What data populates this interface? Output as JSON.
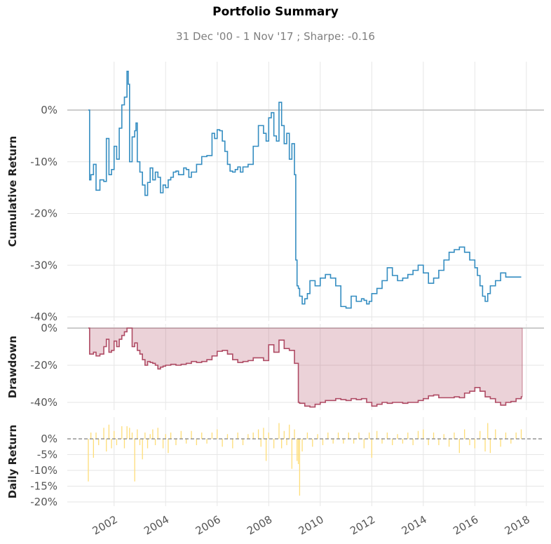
{
  "title": "Portfolio Summary",
  "subtitle": "31 Dec '00 -  1 Nov '17 ;  Sharpe: -0.16",
  "chart_data": [
    {
      "type": "line",
      "ylabel": "Cumulative Return",
      "x_range": [
        2001.0,
        2017.84
      ],
      "ylim": [
        -40,
        8
      ],
      "yticks": [
        0,
        -10,
        -20,
        -30,
        -40
      ],
      "ytick_labels": [
        "0%",
        "-10%",
        "-20%",
        "-30%",
        "-40%"
      ],
      "grid": true,
      "color": "#348dc1",
      "x": [
        2001.0,
        2001.05,
        2001.1,
        2001.2,
        2001.3,
        2001.45,
        2001.6,
        2001.7,
        2001.8,
        2001.9,
        2002.0,
        2002.1,
        2002.2,
        2002.3,
        2002.4,
        2002.5,
        2002.55,
        2002.6,
        2002.7,
        2002.8,
        2002.85,
        2002.9,
        2003.0,
        2003.1,
        2003.2,
        2003.3,
        2003.4,
        2003.5,
        2003.6,
        2003.7,
        2003.8,
        2003.9,
        2004.0,
        2004.1,
        2004.2,
        2004.3,
        2004.4,
        2004.5,
        2004.6,
        2004.7,
        2004.8,
        2004.9,
        2005.0,
        2005.2,
        2005.4,
        2005.6,
        2005.8,
        2005.9,
        2006.0,
        2006.1,
        2006.2,
        2006.3,
        2006.4,
        2006.5,
        2006.6,
        2006.7,
        2006.8,
        2006.9,
        2007.0,
        2007.2,
        2007.4,
        2007.6,
        2007.8,
        2007.9,
        2008.0,
        2008.1,
        2008.2,
        2008.3,
        2008.4,
        2008.5,
        2008.6,
        2008.7,
        2008.8,
        2008.9,
        2009.0,
        2009.05,
        2009.1,
        2009.15,
        2009.2,
        2009.3,
        2009.4,
        2009.5,
        2009.6,
        2009.8,
        2010.0,
        2010.2,
        2010.4,
        2010.6,
        2010.8,
        2011.0,
        2011.2,
        2011.4,
        2011.6,
        2011.7,
        2011.8,
        2011.9,
        2012.0,
        2012.2,
        2012.4,
        2012.6,
        2012.8,
        2013.0,
        2013.2,
        2013.4,
        2013.6,
        2013.8,
        2014.0,
        2014.2,
        2014.4,
        2014.6,
        2014.8,
        2015.0,
        2015.2,
        2015.4,
        2015.6,
        2015.8,
        2016.0,
        2016.1,
        2016.2,
        2016.3,
        2016.4,
        2016.5,
        2016.6,
        2016.8,
        2017.0,
        2017.2,
        2017.4,
        2017.6,
        2017.7,
        2017.8
      ],
      "y": [
        0,
        -13.5,
        -12.5,
        -10.5,
        -15.5,
        -13.5,
        -13.8,
        -5.5,
        -12.5,
        -11.5,
        -7,
        -9.5,
        -3.5,
        1,
        2.5,
        7.5,
        5,
        -10,
        -5.2,
        -4,
        -2.5,
        -10,
        -12,
        -14.5,
        -16.5,
        -14,
        -11.2,
        -13.5,
        -12,
        -13,
        -16,
        -14.5,
        -15,
        -13.5,
        -13,
        -12,
        -11.8,
        -12.5,
        -12.5,
        -11.2,
        -11.5,
        -13,
        -12,
        -10.5,
        -9,
        -8.8,
        -4.5,
        -5.5,
        -3.8,
        -4,
        -6,
        -8,
        -10.5,
        -11.8,
        -12,
        -11.5,
        -11,
        -12,
        -11,
        -10.5,
        -7,
        -3,
        -4.5,
        -6,
        -1.5,
        -0.5,
        -5,
        -6,
        1.5,
        -3,
        -6.5,
        -4.5,
        -9.5,
        -6.5,
        -12.5,
        -29,
        -34,
        -34.5,
        -36,
        -37.5,
        -36.5,
        -35.5,
        -33,
        -34,
        -32.5,
        -31.8,
        -32.5,
        -34,
        -38,
        -38.3,
        -36,
        -37,
        -36.5,
        -36.8,
        -37.5,
        -37,
        -35.5,
        -34.5,
        -33,
        -30.5,
        -32,
        -33,
        -32.5,
        -31.8,
        -31,
        -30,
        -31.5,
        -33.5,
        -32.5,
        -31,
        -29,
        -27.5,
        -27,
        -26.5,
        -27.5,
        -29,
        -30.5,
        -32,
        -34,
        -36,
        -37,
        -35.5,
        -34,
        -33,
        -31.5,
        -32.3,
        -32.3,
        -32.3,
        -32.3,
        -32.3
      ]
    },
    {
      "type": "area",
      "ylabel": "Drawdown",
      "x_range": [
        2001.0,
        2017.84
      ],
      "ylim": [
        -43,
        0
      ],
      "yticks": [
        0,
        -20,
        -40
      ],
      "ytick_labels": [
        "0%",
        "-20%",
        "-40%"
      ],
      "grid": true,
      "color": "#af4b64",
      "x": [
        2001.0,
        2001.05,
        2001.2,
        2001.3,
        2001.45,
        2001.6,
        2001.7,
        2001.8,
        2001.9,
        2002.0,
        2002.1,
        2002.2,
        2002.3,
        2002.4,
        2002.5,
        2002.6,
        2002.7,
        2002.8,
        2002.9,
        2003.0,
        2003.1,
        2003.2,
        2003.3,
        2003.4,
        2003.5,
        2003.6,
        2003.7,
        2003.8,
        2003.9,
        2004.0,
        2004.2,
        2004.4,
        2004.6,
        2004.8,
        2005.0,
        2005.2,
        2005.4,
        2005.6,
        2005.8,
        2006.0,
        2006.2,
        2006.4,
        2006.6,
        2006.8,
        2007.0,
        2007.2,
        2007.4,
        2007.6,
        2007.8,
        2008.0,
        2008.2,
        2008.4,
        2008.6,
        2008.8,
        2009.0,
        2009.1,
        2009.15,
        2009.2,
        2009.4,
        2009.6,
        2009.8,
        2010.0,
        2010.2,
        2010.4,
        2010.6,
        2010.8,
        2011.0,
        2011.2,
        2011.4,
        2011.6,
        2011.8,
        2012.0,
        2012.2,
        2012.4,
        2012.6,
        2012.8,
        2013.0,
        2013.2,
        2013.4,
        2013.6,
        2013.8,
        2014.0,
        2014.2,
        2014.4,
        2014.6,
        2014.8,
        2015.0,
        2015.2,
        2015.4,
        2015.6,
        2015.8,
        2016.0,
        2016.2,
        2016.4,
        2016.6,
        2016.8,
        2017.0,
        2017.2,
        2017.4,
        2017.6,
        2017.8
      ],
      "y": [
        0,
        -14,
        -13,
        -15,
        -14,
        -10,
        -6,
        -13,
        -12,
        -7,
        -10,
        -6,
        -4,
        -2,
        0,
        0,
        -10,
        -8,
        -12,
        -14,
        -17,
        -20,
        -18,
        -18.5,
        -19,
        -20,
        -22,
        -21,
        -20.5,
        -20,
        -19.5,
        -20,
        -19.5,
        -19,
        -18,
        -18.5,
        -18,
        -17,
        -15,
        -12.5,
        -12,
        -14,
        -17,
        -18.5,
        -18,
        -17.5,
        -16,
        -16,
        -17.5,
        -9,
        -13,
        -6.5,
        -11,
        -12,
        -19,
        -19,
        -40,
        -40.5,
        -42,
        -42.5,
        -41,
        -40,
        -39,
        -39,
        -38,
        -38.5,
        -39,
        -38,
        -38.5,
        -38,
        -40,
        -42,
        -41,
        -40,
        -40.5,
        -40,
        -40,
        -40.5,
        -40,
        -40,
        -39,
        -38,
        -36.5,
        -36,
        -37.5,
        -37.5,
        -37.5,
        -37,
        -37.5,
        -35,
        -34,
        -32,
        -34,
        -37,
        -38,
        -40,
        -41.5,
        -40,
        -39.5,
        -38,
        -37
      ]
    },
    {
      "type": "bar",
      "ylabel": "Daily Return",
      "x_range": [
        2001.0,
        2017.84
      ],
      "ylim": [
        -20,
        5
      ],
      "yticks": [
        0,
        -5,
        -10,
        -15,
        -20
      ],
      "ytick_labels": [
        "0%",
        "-5%",
        "-10%",
        "-15%",
        "-20%"
      ],
      "grid": true,
      "baseline": "dashed",
      "color": "#fedd78",
      "x": [
        2001.0,
        2001.1,
        2001.2,
        2001.3,
        2001.4,
        2001.6,
        2001.7,
        2001.8,
        2001.9,
        2002.0,
        2002.1,
        2002.3,
        2002.4,
        2002.5,
        2002.6,
        2002.7,
        2002.8,
        2002.9,
        2003.0,
        2003.1,
        2003.2,
        2003.3,
        2003.4,
        2003.5,
        2003.6,
        2003.7,
        2003.9,
        2004.0,
        2004.1,
        2004.2,
        2004.4,
        2004.6,
        2004.8,
        2005.0,
        2005.2,
        2005.4,
        2005.6,
        2005.8,
        2006.0,
        2006.2,
        2006.4,
        2006.6,
        2006.8,
        2007.0,
        2007.2,
        2007.4,
        2007.6,
        2007.7,
        2007.8,
        2007.9,
        2008.0,
        2008.2,
        2008.4,
        2008.5,
        2008.6,
        2008.7,
        2008.8,
        2008.9,
        2009.0,
        2009.1,
        2009.15,
        2009.2,
        2009.3,
        2009.5,
        2009.7,
        2009.9,
        2010.1,
        2010.3,
        2010.5,
        2010.7,
        2010.9,
        2011.1,
        2011.3,
        2011.5,
        2011.7,
        2011.9,
        2012.0,
        2012.2,
        2012.4,
        2012.6,
        2012.8,
        2013.0,
        2013.2,
        2013.4,
        2013.6,
        2013.8,
        2014.0,
        2014.2,
        2014.4,
        2014.6,
        2014.8,
        2015.0,
        2015.2,
        2015.4,
        2015.6,
        2015.8,
        2016.0,
        2016.2,
        2016.4,
        2016.5,
        2016.6,
        2016.8,
        2017.0,
        2017.2,
        2017.4,
        2017.6,
        2017.8
      ],
      "y": [
        -13.5,
        2,
        -6,
        2,
        -2,
        3.5,
        -4,
        4.5,
        -3,
        2.5,
        -2,
        4,
        -3,
        4,
        3.5,
        2,
        -13.5,
        3,
        -2,
        -6.5,
        2,
        -3,
        1.5,
        3,
        -2,
        3.5,
        -3,
        1.5,
        -4.5,
        2,
        -2,
        2.5,
        -1.5,
        2.5,
        -2,
        2,
        -1.5,
        2,
        3,
        -2.5,
        1.5,
        -3,
        2,
        -2,
        1.5,
        2,
        3,
        -2.5,
        3.5,
        -7,
        2,
        -3,
        5,
        -3,
        2.5,
        -2,
        4.5,
        -9.5,
        3,
        -7,
        -8,
        -18,
        -4,
        2,
        -2.5,
        1.5,
        -2,
        2,
        -1.5,
        2,
        -1.5,
        2,
        -1.5,
        2,
        -3,
        2,
        -6,
        2.5,
        -1.5,
        2,
        -2,
        1.5,
        -1.5,
        2,
        -2,
        2.5,
        3,
        -2,
        2,
        -2,
        1.5,
        -2.5,
        2,
        -4.5,
        3,
        -2,
        -3,
        2.5,
        -4,
        5,
        -4.5,
        3,
        -2.5,
        2,
        -1.5,
        2,
        3
      ]
    }
  ],
  "x_ticks": {
    "values": [
      2002,
      2004,
      2006,
      2008,
      2010,
      2012,
      2014,
      2016,
      2018
    ],
    "labels": [
      "2002",
      "2004",
      "2006",
      "2008",
      "2010",
      "2012",
      "2014",
      "2016",
      "2018"
    ]
  }
}
